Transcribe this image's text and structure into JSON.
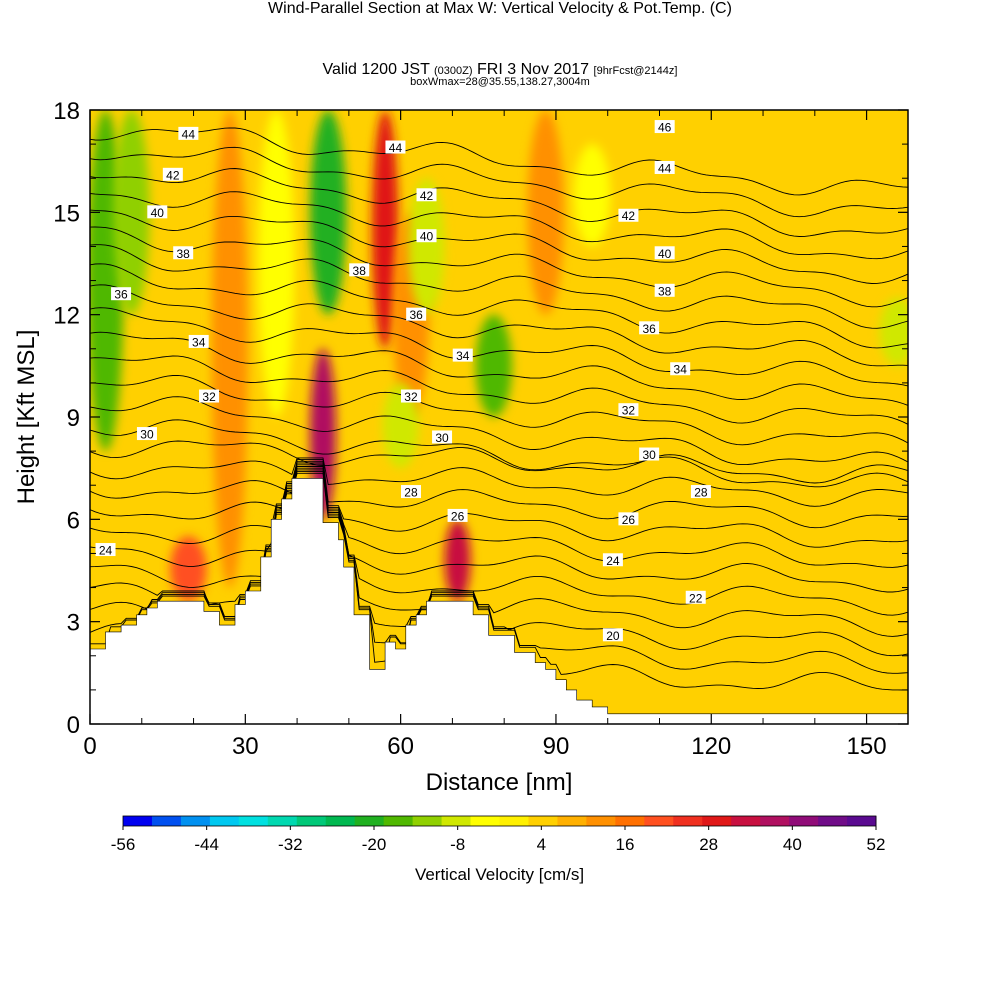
{
  "header": {
    "title": "Wind-Parallel Section at Max W: Vertical Velocity & Pot.Temp.",
    "copyright_tag": "(C)",
    "valid_main": "Valid 1200 JST",
    "valid_utc": "(0300Z)",
    "valid_date": "FRI 3 Nov 2017",
    "forecast": "[9hrFcst@2144z]",
    "box_info": "boxWmax=28@35.55,138.27,3004m"
  },
  "chart_data": {
    "type": "heatmap",
    "xlabel": "Distance [nm]",
    "ylabel": "Height [Kft MSL]",
    "xlim": [
      0,
      158
    ],
    "ylim": [
      0,
      18
    ],
    "xticks": [
      0,
      30,
      60,
      90,
      120,
      150
    ],
    "yticks": [
      0,
      3,
      6,
      9,
      12,
      15,
      18
    ],
    "colorbar": {
      "title": "Vertical Velocity [cm/s]",
      "min": -56,
      "max": 52,
      "labels": [
        -56,
        -44,
        -32,
        -20,
        -8,
        4,
        16,
        28,
        40,
        52
      ],
      "colors": [
        "#0000f0",
        "#0050f0",
        "#0090f0",
        "#00c8f0",
        "#00e0e0",
        "#00d8b0",
        "#00c878",
        "#00b850",
        "#20b020",
        "#50b800",
        "#90d000",
        "#d0e800",
        "#ffff00",
        "#fff000",
        "#ffd000",
        "#ffb000",
        "#ff9000",
        "#ff7000",
        "#ff5020",
        "#f03020",
        "#e01818",
        "#c81040",
        "#b01060",
        "#900c78",
        "#700c88",
        "#5a0a90"
      ]
    },
    "terrain": [
      [
        0,
        2.2
      ],
      [
        3,
        2.2
      ],
      [
        3,
        2.7
      ],
      [
        6,
        2.7
      ],
      [
        6,
        2.9
      ],
      [
        9,
        2.9
      ],
      [
        9,
        3.2
      ],
      [
        11,
        3.2
      ],
      [
        11,
        3.4
      ],
      [
        13,
        3.4
      ],
      [
        13,
        3.6
      ],
      [
        22,
        3.6
      ],
      [
        22,
        3.3
      ],
      [
        25,
        3.3
      ],
      [
        25,
        2.9
      ],
      [
        28,
        2.9
      ],
      [
        28,
        3.5
      ],
      [
        30,
        3.5
      ],
      [
        30,
        3.9
      ],
      [
        33,
        3.9
      ],
      [
        33,
        4.9
      ],
      [
        35,
        4.9
      ],
      [
        35,
        6.0
      ],
      [
        37,
        6.0
      ],
      [
        37,
        6.6
      ],
      [
        39,
        6.6
      ],
      [
        39,
        7.2
      ],
      [
        45,
        7.2
      ],
      [
        45,
        5.9
      ],
      [
        48,
        5.9
      ],
      [
        48,
        5.4
      ],
      [
        49,
        5.4
      ],
      [
        49,
        4.6
      ],
      [
        51,
        4.6
      ],
      [
        51,
        3.2
      ],
      [
        54,
        3.2
      ],
      [
        54,
        1.6
      ],
      [
        57,
        1.6
      ],
      [
        57,
        2.4
      ],
      [
        59,
        2.4
      ],
      [
        59,
        2.2
      ],
      [
        61,
        2.2
      ],
      [
        61,
        2.9
      ],
      [
        63,
        2.9
      ],
      [
        63,
        3.2
      ],
      [
        65,
        3.2
      ],
      [
        65,
        3.6
      ],
      [
        74,
        3.6
      ],
      [
        74,
        3.2
      ],
      [
        77,
        3.2
      ],
      [
        77,
        2.6
      ],
      [
        82,
        2.6
      ],
      [
        82,
        2.1
      ],
      [
        86,
        2.1
      ],
      [
        86,
        1.8
      ],
      [
        88,
        1.8
      ],
      [
        88,
        1.6
      ],
      [
        90,
        1.6
      ],
      [
        90,
        1.3
      ],
      [
        92,
        1.3
      ],
      [
        92,
        1.0
      ],
      [
        94,
        1.0
      ],
      [
        94,
        0.7
      ],
      [
        97,
        0.7
      ],
      [
        97,
        0.5
      ],
      [
        100,
        0.5
      ],
      [
        100,
        0.3
      ],
      [
        158,
        0.3
      ]
    ],
    "velocity_bands": [
      {
        "x": 3,
        "y0": 8,
        "y1": 18,
        "value": -16
      },
      {
        "x": 8,
        "y0": 12,
        "y1": 18,
        "value": -12
      },
      {
        "x": 27,
        "y0": 4,
        "y1": 18,
        "value": 12
      },
      {
        "x": 36,
        "y0": 9,
        "y1": 18,
        "value": -6
      },
      {
        "x": 45,
        "y0": 6,
        "y1": 11,
        "value": 36
      },
      {
        "x": 46,
        "y0": 12,
        "y1": 18,
        "value": -20
      },
      {
        "x": 57,
        "y0": 11,
        "y1": 18,
        "value": 30
      },
      {
        "x": 62,
        "y0": 9,
        "y1": 15,
        "value": 14
      },
      {
        "x": 65,
        "y0": 12,
        "y1": 16,
        "value": -8
      },
      {
        "x": 71,
        "y0": 3.6,
        "y1": 6,
        "value": 34
      },
      {
        "x": 78,
        "y0": 9,
        "y1": 12,
        "value": -18
      },
      {
        "x": 88,
        "y0": 12,
        "y1": 18,
        "value": 14
      },
      {
        "x": 97,
        "y0": 14,
        "y1": 17,
        "value": -6
      },
      {
        "x": 19,
        "y0": 3.6,
        "y1": 5.5,
        "value": 22
      },
      {
        "x": 60,
        "y0": 7.5,
        "y1": 10,
        "value": -10
      },
      {
        "x": 156,
        "y0": 10.5,
        "y1": 12.5,
        "value": -8
      }
    ],
    "isentrope_labels": [
      {
        "text": "44",
        "x": 19,
        "y": 17.3
      },
      {
        "text": "42",
        "x": 16,
        "y": 16.1
      },
      {
        "text": "40",
        "x": 13,
        "y": 15.0
      },
      {
        "text": "38",
        "x": 18,
        "y": 13.8
      },
      {
        "text": "36",
        "x": 6,
        "y": 12.6
      },
      {
        "text": "34",
        "x": 21,
        "y": 11.2
      },
      {
        "text": "32",
        "x": 23,
        "y": 9.6
      },
      {
        "text": "30",
        "x": 11,
        "y": 8.5
      },
      {
        "text": "24",
        "x": 3,
        "y": 5.1
      },
      {
        "text": "44",
        "x": 59,
        "y": 16.9
      },
      {
        "text": "42",
        "x": 65,
        "y": 15.5
      },
      {
        "text": "40",
        "x": 65,
        "y": 14.3
      },
      {
        "text": "38",
        "x": 52,
        "y": 13.3
      },
      {
        "text": "36",
        "x": 63,
        "y": 12.0
      },
      {
        "text": "34",
        "x": 72,
        "y": 10.8
      },
      {
        "text": "32",
        "x": 62,
        "y": 9.6
      },
      {
        "text": "30",
        "x": 68,
        "y": 8.4
      },
      {
        "text": "28",
        "x": 62,
        "y": 6.8
      },
      {
        "text": "26",
        "x": 71,
        "y": 6.1
      },
      {
        "text": "46",
        "x": 111,
        "y": 17.5
      },
      {
        "text": "44",
        "x": 111,
        "y": 16.3
      },
      {
        "text": "42",
        "x": 104,
        "y": 14.9
      },
      {
        "text": "40",
        "x": 111,
        "y": 13.8
      },
      {
        "text": "38",
        "x": 111,
        "y": 12.7
      },
      {
        "text": "36",
        "x": 108,
        "y": 11.6
      },
      {
        "text": "34",
        "x": 114,
        "y": 10.4
      },
      {
        "text": "32",
        "x": 104,
        "y": 9.2
      },
      {
        "text": "30",
        "x": 108,
        "y": 7.9
      },
      {
        "text": "28",
        "x": 118,
        "y": 6.8
      },
      {
        "text": "26",
        "x": 104,
        "y": 6.0
      },
      {
        "text": "24",
        "x": 101,
        "y": 4.8
      },
      {
        "text": "22",
        "x": 117,
        "y": 3.7
      },
      {
        "text": "20",
        "x": 101,
        "y": 2.6
      }
    ]
  }
}
